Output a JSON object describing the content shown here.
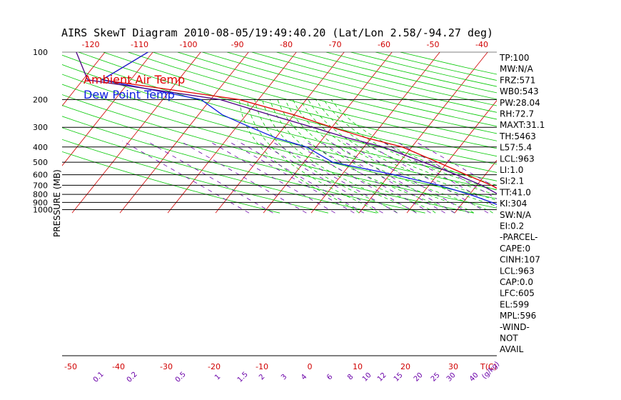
{
  "chart_data": {
    "type": "line",
    "title": "AIRS SkewT Diagram 2010-08-05/19:49:40.20 (Lat/Lon 2.58/-94.27 deg)",
    "ylabel": "PRESSURE (MB)",
    "pressure_ticks": [
      100,
      200,
      300,
      400,
      500,
      600,
      700,
      800,
      900,
      1000
    ],
    "top_temp_ticks": [
      "-120",
      "-110",
      "-100",
      "-90",
      "-80",
      "-70",
      "-60",
      "-50",
      "-40"
    ],
    "bottom_temp_ticks": [
      "-50",
      "-40",
      "-30",
      "-20",
      "-10",
      "0",
      "10",
      "20",
      "30"
    ],
    "bottom_unit": "T(C)",
    "mixing_ratio_labels": [
      "0.1",
      "0.2",
      "0.5",
      "1",
      "1.5",
      "2",
      "3",
      "4",
      "6",
      "8",
      "10",
      "12",
      "15",
      "20",
      "25",
      "30",
      "40"
    ],
    "mixing_unit": "(g/kg)",
    "legend": [
      "Ambient Air Temp",
      "Dew Point Temp"
    ],
    "series": [
      {
        "name": "Ambient Air Temp",
        "color": "#e00000",
        "points": [
          [
            100,
            -81
          ],
          [
            150,
            -86
          ],
          [
            200,
            -54
          ],
          [
            250,
            -40
          ],
          [
            300,
            -30
          ],
          [
            350,
            -21
          ],
          [
            400,
            -12
          ],
          [
            500,
            -2
          ],
          [
            600,
            6
          ],
          [
            700,
            13
          ],
          [
            800,
            18
          ],
          [
            900,
            22
          ],
          [
            960,
            23
          ],
          [
            1000,
            25
          ]
        ]
      },
      {
        "name": "Dew Point Temp",
        "color": "#1020e0",
        "points": [
          [
            100,
            -81
          ],
          [
            150,
            -86
          ],
          [
            200,
            -62
          ],
          [
            250,
            -55
          ],
          [
            300,
            -47
          ],
          [
            350,
            -40
          ],
          [
            400,
            -32
          ],
          [
            500,
            -24
          ],
          [
            600,
            -9
          ],
          [
            700,
            2
          ],
          [
            800,
            10
          ],
          [
            900,
            16
          ],
          [
            960,
            19
          ],
          [
            1000,
            19
          ]
        ]
      },
      {
        "name": "parcel",
        "color": "#4b0082",
        "points": [
          [
            100,
            -96
          ],
          [
            150,
            -89
          ],
          [
            200,
            -58
          ],
          [
            250,
            -45
          ],
          [
            300,
            -34
          ],
          [
            350,
            -25
          ],
          [
            400,
            -16
          ],
          [
            500,
            -5
          ],
          [
            600,
            4
          ],
          [
            700,
            11
          ],
          [
            800,
            16
          ],
          [
            900,
            20
          ],
          [
            960,
            21
          ],
          [
            1000,
            25
          ]
        ]
      }
    ],
    "indices": [
      "TP:100",
      "MW:N/A",
      "FRZ:571",
      "WB0:543",
      "PW:28.04",
      "RH:72.7",
      "MAXT:31.1",
      "TH:5463",
      "L57:5.4",
      "LCL:963",
      "LI:1.0",
      "SI:2.1",
      "TT:41.0",
      "KI:304",
      "SW:N/A",
      "EI:0.2",
      "-PARCEL-",
      "CAPE:0",
      "CINH:107",
      "LCL:963",
      "CAP:0.0",
      "LFC:605",
      "EL:599",
      "MPL:596",
      "-WIND-",
      "NOT",
      "AVAIL"
    ],
    "colors": {
      "isotherm": "#d00000",
      "dry_adiabat": "#00c800",
      "moist_adiabat": "#00c800",
      "mixing_ratio": "#6a00a8",
      "isobar": "#000000"
    }
  }
}
